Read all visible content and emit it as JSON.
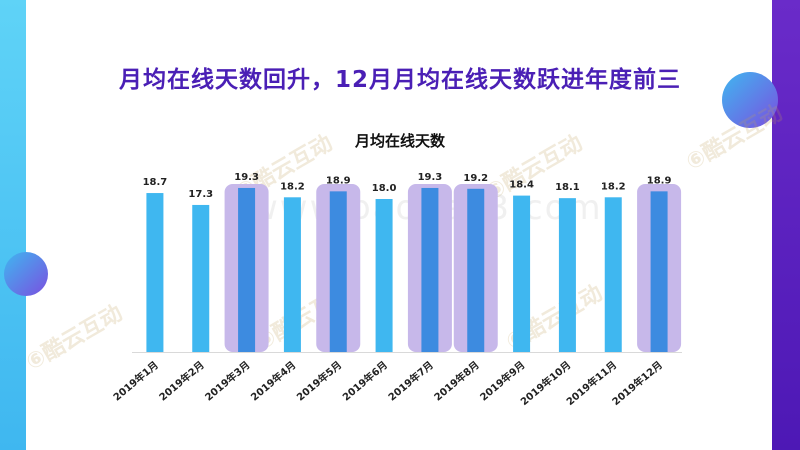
{
  "headline": "月均在线天数回升，12月月均在线天数跃进年度前三",
  "watermark": {
    "brand": "酷云互动",
    "url": "www.baogao3.com"
  },
  "colors": {
    "bar": "#3fb7f0",
    "bar_highlight": "#3d8be0",
    "highlight_box": "#c7b8ea",
    "headline": "#4a1fb5"
  },
  "chart_data": {
    "type": "bar",
    "title": "月均在线天数",
    "categories": [
      "2019年1月",
      "2019年2月",
      "2019年3月",
      "2019年4月",
      "2019年5月",
      "2019年6月",
      "2019年7月",
      "2019年8月",
      "2019年9月",
      "2019年10月",
      "2019年11月",
      "2019年12月"
    ],
    "values": [
      18.7,
      17.3,
      19.3,
      18.2,
      18.9,
      18.0,
      19.3,
      19.2,
      18.4,
      18.1,
      18.2,
      18.9
    ],
    "value_labels": [
      "18.7",
      "17.3",
      "19.3",
      "18.2",
      "18.9",
      "18.0",
      "19.3",
      "19.2",
      "18.4",
      "18.1",
      "18.2",
      "18.9"
    ],
    "highlighted": [
      "2019年3月",
      "2019年5月",
      "2019年7月",
      "2019年8月",
      "2019年12月"
    ],
    "ylim": [
      0,
      20
    ],
    "grid": false,
    "legend": "none"
  }
}
